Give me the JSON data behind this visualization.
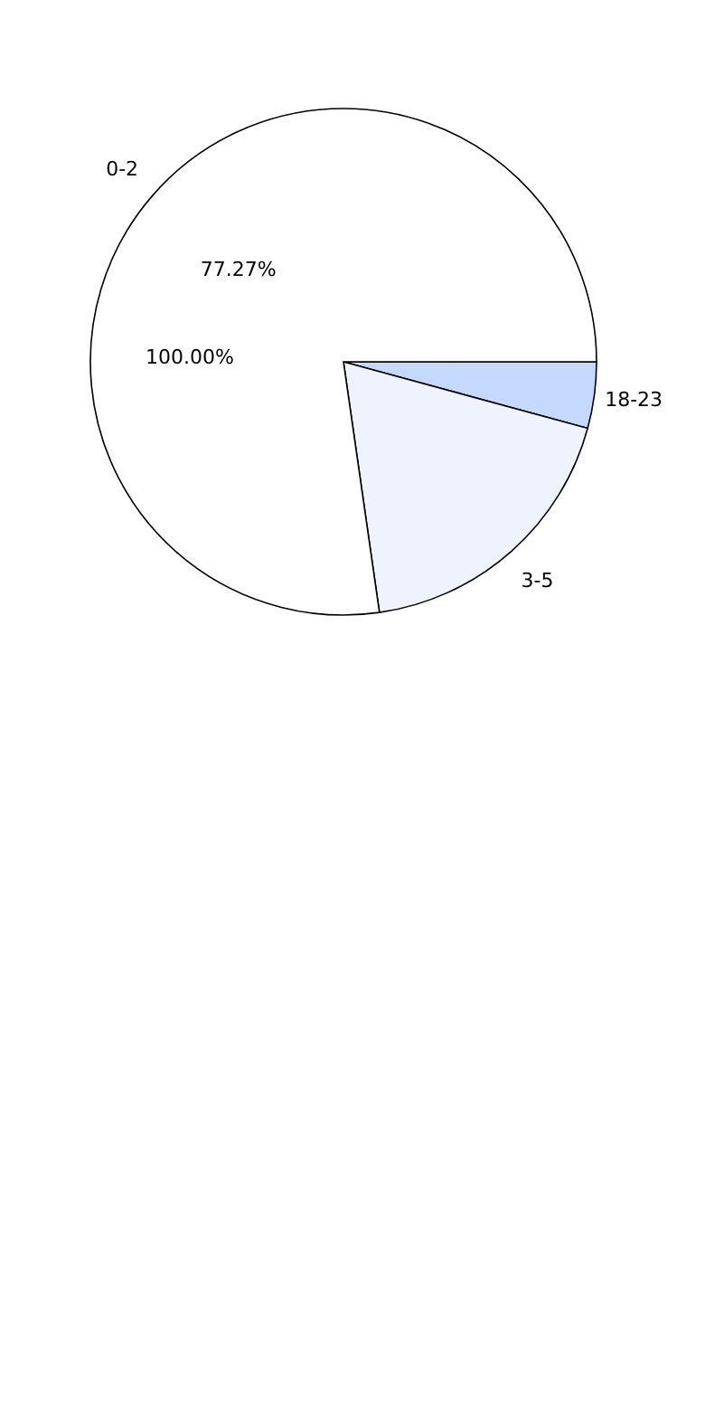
{
  "chart_data": {
    "type": "pie",
    "categories": [
      "18-23",
      "3-5",
      "0-2"
    ],
    "values": [
      4.23,
      18.5,
      77.27
    ],
    "colors": [
      "#c5d8fd",
      "#eef3fe",
      "#ffffff"
    ],
    "value_labels": [
      null,
      null,
      "77.27%"
    ],
    "annotations": [
      "100.00%"
    ]
  }
}
